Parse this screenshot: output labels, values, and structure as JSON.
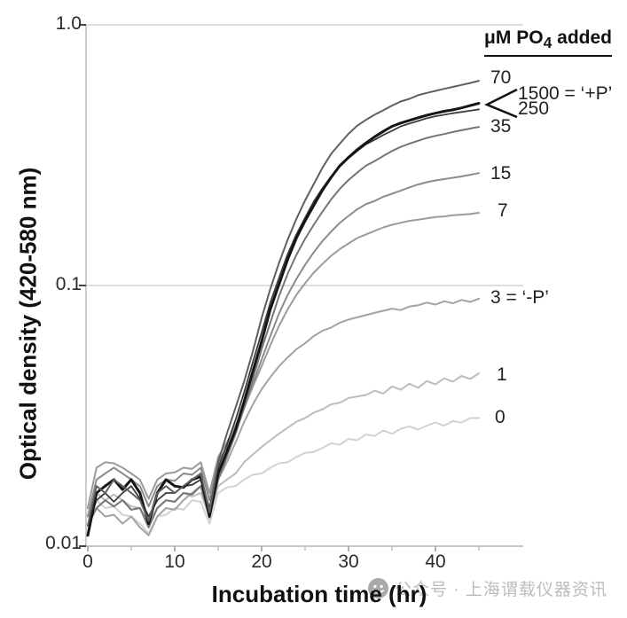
{
  "watermark": {
    "icon": "official-account-logo-icon",
    "text": "公众号 · 上海谓载仪器资讯"
  },
  "chart_data": {
    "type": "line",
    "title": "",
    "xlabel": "Incubation time (hr)",
    "ylabel": "Optical density (420-580 nm)",
    "x_axis": {
      "min": 0,
      "max": 50,
      "major_ticks": [
        "0",
        "10",
        "20",
        "30",
        "40"
      ],
      "major_tick_values": [
        0,
        10,
        20,
        30,
        40
      ],
      "minor_tick_values": [
        5,
        15,
        25,
        35,
        45
      ],
      "unit": "hr"
    },
    "y_axis": {
      "scale": "log",
      "min": 0.01,
      "max": 1.0,
      "ticks": [
        {
          "value": 1.0,
          "label": "1.0"
        },
        {
          "value": 0.1,
          "label": "0.1"
        },
        {
          "value": 0.01,
          "label": "0.01"
        }
      ],
      "gridlines": [
        1.0,
        0.1
      ]
    },
    "legend": {
      "title_pre": "μM PO",
      "title_sub": "4",
      "title_post": " added",
      "bracket_note": "bracket groups 1500 and 250 which overlap as the thick dark curve"
    },
    "x_start": 0,
    "x_step": 1,
    "series": [
      {
        "name": "70",
        "label": "70",
        "color": "#5f5f5f",
        "width": 2,
        "values": [
          0.012,
          0.017,
          0.016,
          0.018,
          0.017,
          0.016,
          0.015,
          0.0125,
          0.016,
          0.017,
          0.016,
          0.017,
          0.018,
          0.019,
          0.0135,
          0.021,
          0.027,
          0.034,
          0.043,
          0.056,
          0.075,
          0.097,
          0.122,
          0.15,
          0.18,
          0.212,
          0.245,
          0.283,
          0.32,
          0.35,
          0.382,
          0.41,
          0.432,
          0.452,
          0.47,
          0.49,
          0.508,
          0.52,
          0.537,
          0.548,
          0.558,
          0.568,
          0.578,
          0.588,
          0.598,
          0.61
        ]
      },
      {
        "name": "1500",
        "label": "1500 = ‘+P’",
        "color": "#151515",
        "width": 3,
        "values": [
          0.011,
          0.016,
          0.017,
          0.018,
          0.0165,
          0.018,
          0.016,
          0.0122,
          0.016,
          0.018,
          0.017,
          0.0168,
          0.018,
          0.0185,
          0.013,
          0.019,
          0.023,
          0.028,
          0.036,
          0.047,
          0.061,
          0.081,
          0.101,
          0.126,
          0.152,
          0.177,
          0.203,
          0.232,
          0.26,
          0.288,
          0.31,
          0.332,
          0.352,
          0.372,
          0.39,
          0.408,
          0.42,
          0.43,
          0.44,
          0.45,
          0.458,
          0.466,
          0.472,
          0.48,
          0.49,
          0.5
        ]
      },
      {
        "name": "250",
        "label": "250",
        "color": "#3c3c3c",
        "width": 1.8,
        "values": [
          0.012,
          0.015,
          0.016,
          0.0148,
          0.016,
          0.017,
          0.0152,
          0.013,
          0.015,
          0.016,
          0.016,
          0.017,
          0.0172,
          0.018,
          0.014,
          0.02,
          0.0245,
          0.0305,
          0.039,
          0.051,
          0.066,
          0.086,
          0.107,
          0.132,
          0.157,
          0.182,
          0.21,
          0.236,
          0.262,
          0.286,
          0.308,
          0.328,
          0.348,
          0.362,
          0.378,
          0.392,
          0.408,
          0.418,
          0.428,
          0.438,
          0.446,
          0.452,
          0.458,
          0.463,
          0.468,
          0.474
        ]
      },
      {
        "name": "35",
        "label": "35",
        "color": "#757575",
        "width": 2,
        "values": [
          0.012,
          0.014,
          0.015,
          0.0142,
          0.015,
          0.0138,
          0.014,
          0.0118,
          0.014,
          0.015,
          0.0148,
          0.016,
          0.0158,
          0.017,
          0.013,
          0.018,
          0.022,
          0.027,
          0.034,
          0.044,
          0.057,
          0.072,
          0.091,
          0.111,
          0.131,
          0.151,
          0.171,
          0.192,
          0.214,
          0.235,
          0.254,
          0.271,
          0.288,
          0.3,
          0.314,
          0.328,
          0.34,
          0.35,
          0.359,
          0.368,
          0.375,
          0.381,
          0.388,
          0.394,
          0.4,
          0.406
        ]
      },
      {
        "name": "15",
        "label": "15",
        "color": "#8c8c8c",
        "width": 2,
        "values": [
          0.013,
          0.018,
          0.019,
          0.02,
          0.019,
          0.018,
          0.017,
          0.0142,
          0.017,
          0.018,
          0.0178,
          0.019,
          0.0188,
          0.02,
          0.015,
          0.021,
          0.024,
          0.028,
          0.034,
          0.042,
          0.052,
          0.064,
          0.078,
          0.092,
          0.106,
          0.12,
          0.134,
          0.148,
          0.161,
          0.174,
          0.185,
          0.196,
          0.205,
          0.211,
          0.219,
          0.225,
          0.231,
          0.238,
          0.244,
          0.249,
          0.253,
          0.256,
          0.259,
          0.262,
          0.266,
          0.27
        ]
      },
      {
        "name": "7",
        "label": "7",
        "color": "#9b9b9b",
        "width": 2,
        "values": [
          0.014,
          0.02,
          0.021,
          0.0208,
          0.02,
          0.019,
          0.018,
          0.0152,
          0.018,
          0.019,
          0.0192,
          0.02,
          0.0198,
          0.021,
          0.016,
          0.022,
          0.025,
          0.029,
          0.034,
          0.041,
          0.049,
          0.059,
          0.07,
          0.081,
          0.092,
          0.102,
          0.112,
          0.121,
          0.13,
          0.138,
          0.145,
          0.152,
          0.157,
          0.162,
          0.167,
          0.171,
          0.174,
          0.177,
          0.179,
          0.181,
          0.183,
          0.184,
          0.186,
          0.187,
          0.188,
          0.19
        ]
      },
      {
        "name": "3",
        "label": "3 = ‘-P’",
        "color": "#a3a3a3",
        "width": 2,
        "values": [
          0.012,
          0.014,
          0.013,
          0.0132,
          0.0122,
          0.013,
          0.0118,
          0.011,
          0.013,
          0.014,
          0.0138,
          0.015,
          0.016,
          0.017,
          0.0128,
          0.018,
          0.021,
          0.025,
          0.03,
          0.035,
          0.04,
          0.0445,
          0.049,
          0.053,
          0.057,
          0.06,
          0.064,
          0.067,
          0.069,
          0.072,
          0.074,
          0.0755,
          0.077,
          0.0785,
          0.08,
          0.0815,
          0.0805,
          0.083,
          0.084,
          0.086,
          0.0845,
          0.087,
          0.0855,
          0.088,
          0.0865,
          0.089
        ]
      },
      {
        "name": "1",
        "label": "1",
        "color": "#bcbcbc",
        "width": 2,
        "values": [
          0.013,
          0.016,
          0.015,
          0.0158,
          0.015,
          0.0142,
          0.014,
          0.0122,
          0.014,
          0.015,
          0.0148,
          0.016,
          0.0155,
          0.016,
          0.013,
          0.017,
          0.018,
          0.019,
          0.021,
          0.0225,
          0.024,
          0.0255,
          0.027,
          0.0285,
          0.03,
          0.031,
          0.0325,
          0.0335,
          0.035,
          0.0355,
          0.037,
          0.0375,
          0.038,
          0.0395,
          0.0385,
          0.041,
          0.0398,
          0.042,
          0.0405,
          0.043,
          0.0418,
          0.044,
          0.0428,
          0.045,
          0.0438,
          0.046
        ]
      },
      {
        "name": "0",
        "label": "0",
        "color": "#d2d2d2",
        "width": 2,
        "values": [
          0.013,
          0.015,
          0.014,
          0.0142,
          0.0132,
          0.013,
          0.0122,
          0.0112,
          0.013,
          0.0132,
          0.014,
          0.0138,
          0.015,
          0.0148,
          0.0122,
          0.016,
          0.0168,
          0.017,
          0.018,
          0.0188,
          0.019,
          0.02,
          0.0208,
          0.021,
          0.022,
          0.0228,
          0.023,
          0.0238,
          0.0248,
          0.0245,
          0.0258,
          0.0255,
          0.0268,
          0.0265,
          0.0278,
          0.027,
          0.0282,
          0.0288,
          0.028,
          0.029,
          0.0298,
          0.029,
          0.0302,
          0.0298,
          0.031,
          0.031
        ]
      }
    ]
  }
}
